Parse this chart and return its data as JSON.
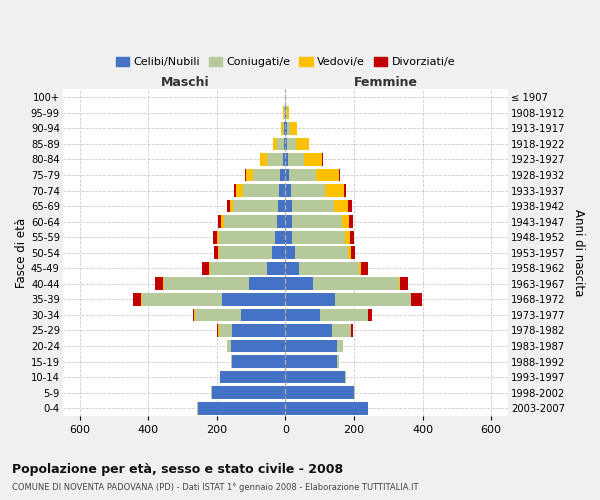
{
  "age_groups": [
    "0-4",
    "5-9",
    "10-14",
    "15-19",
    "20-24",
    "25-29",
    "30-34",
    "35-39",
    "40-44",
    "45-49",
    "50-54",
    "55-59",
    "60-64",
    "65-69",
    "70-74",
    "75-79",
    "80-84",
    "85-89",
    "90-94",
    "95-99",
    "100+"
  ],
  "birth_years": [
    "2003-2007",
    "1998-2002",
    "1993-1997",
    "1988-1992",
    "1983-1987",
    "1978-1982",
    "1973-1977",
    "1968-1972",
    "1963-1967",
    "1958-1962",
    "1953-1957",
    "1948-1952",
    "1943-1947",
    "1938-1942",
    "1933-1937",
    "1928-1932",
    "1923-1927",
    "1918-1922",
    "1913-1917",
    "1908-1912",
    "≤ 1907"
  ],
  "male": {
    "celibe": [
      255,
      215,
      190,
      155,
      160,
      155,
      130,
      185,
      105,
      55,
      40,
      30,
      25,
      22,
      20,
      15,
      8,
      5,
      3,
      2,
      0
    ],
    "coniugato": [
      2,
      2,
      2,
      3,
      10,
      40,
      135,
      235,
      250,
      165,
      155,
      165,
      155,
      130,
      105,
      80,
      45,
      20,
      5,
      2,
      0
    ],
    "vedovo": [
      0,
      0,
      0,
      0,
      0,
      1,
      1,
      2,
      2,
      3,
      3,
      5,
      8,
      10,
      18,
      20,
      20,
      12,
      5,
      2,
      0
    ],
    "divorziato": [
      0,
      0,
      0,
      0,
      1,
      3,
      5,
      22,
      25,
      20,
      10,
      12,
      10,
      8,
      8,
      3,
      0,
      0,
      0,
      0,
      0
    ]
  },
  "female": {
    "nubile": [
      240,
      200,
      175,
      150,
      150,
      135,
      100,
      145,
      80,
      40,
      28,
      20,
      20,
      18,
      15,
      10,
      8,
      5,
      3,
      2,
      0
    ],
    "coniugata": [
      2,
      2,
      2,
      5,
      18,
      55,
      140,
      220,
      250,
      175,
      155,
      155,
      145,
      125,
      100,
      80,
      45,
      25,
      10,
      3,
      0
    ],
    "vedova": [
      0,
      0,
      0,
      0,
      0,
      1,
      1,
      2,
      3,
      5,
      8,
      12,
      20,
      40,
      55,
      65,
      55,
      40,
      20,
      5,
      0
    ],
    "divorziata": [
      0,
      0,
      0,
      0,
      1,
      5,
      10,
      30,
      25,
      22,
      12,
      12,
      12,
      10,
      8,
      3,
      1,
      0,
      0,
      0,
      0
    ]
  },
  "colors": {
    "celibe": "#4472c4",
    "coniugato": "#b5c99a",
    "vedovo": "#ffc000",
    "divorziato": "#c00000"
  },
  "xlim": 650,
  "title": "Popolazione per età, sesso e stato civile - 2008",
  "subtitle": "COMUNE DI NOVENTA PADOVANA (PD) - Dati ISTAT 1° gennaio 2008 - Elaborazione TUTTITALIA.IT",
  "ylabel_left": "Fasce di età",
  "ylabel_right": "Anni di nascita",
  "xlabel_left": "Maschi",
  "xlabel_right": "Femmine",
  "bg_color": "#f0f0f0",
  "plot_bg": "#ffffff",
  "legend_labels": [
    "Celibi/Nubili",
    "Coniugati/e",
    "Vedovi/e",
    "Divorziati/e"
  ]
}
